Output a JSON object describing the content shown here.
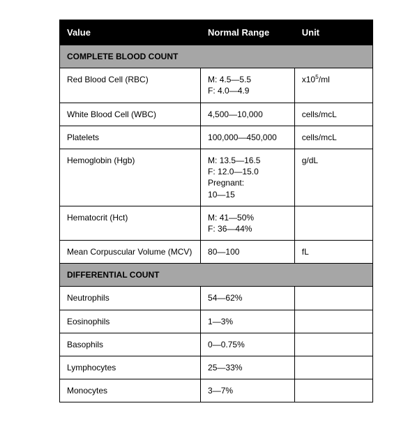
{
  "table": {
    "columns": [
      {
        "label": "Value",
        "width_pct": 45
      },
      {
        "label": "Normal Range",
        "width_pct": 30
      },
      {
        "label": "Unit",
        "width_pct": 25
      }
    ],
    "header_bg": "#000000",
    "header_fg": "#ffffff",
    "section_bg": "#a6a6a6",
    "border_color": "#000000",
    "cell_bg": "#ffffff",
    "font_size_header": 13,
    "font_size_cell": 12,
    "rows": [
      {
        "type": "section",
        "label": "COMPLETE BLOOD COUNT"
      },
      {
        "type": "data",
        "value": "Red Blood Cell (RBC)",
        "range": "M: 4.5—5.5\nF: 4.0—4.9",
        "unit_html": "x10<sup>5</sup>/ml",
        "unit_text": "x10^5/ml"
      },
      {
        "type": "data",
        "value": "White Blood Cell (WBC)",
        "range": "4,500—10,000",
        "unit": "cells/mcL"
      },
      {
        "type": "data",
        "value": "Platelets",
        "range": "100,000—450,000",
        "unit": "cells/mcL"
      },
      {
        "type": "data",
        "value": "Hemoglobin (Hgb)",
        "range": "M: 13.5—16.5\nF: 12.0—15.0\nPregnant:\n10—15",
        "unit": "g/dL"
      },
      {
        "type": "data",
        "value": "Hematocrit (Hct)",
        "range": "M: 41—50%\nF: 36—44%",
        "unit": ""
      },
      {
        "type": "data",
        "value": "Mean Corpuscular Volume (MCV)",
        "range": "80—100",
        "unit": "fL"
      },
      {
        "type": "section",
        "label": "DIFFERENTIAL COUNT"
      },
      {
        "type": "data",
        "value": "Neutrophils",
        "range": "54—62%",
        "unit": ""
      },
      {
        "type": "data",
        "value": "Eosinophils",
        "range": "1—3%",
        "unit": ""
      },
      {
        "type": "data",
        "value": "Basophils",
        "range": "0—0.75%",
        "unit": ""
      },
      {
        "type": "data",
        "value": "Lymphocytes",
        "range": "25—33%",
        "unit": ""
      },
      {
        "type": "data",
        "value": "Monocytes",
        "range": "3—7%",
        "unit": ""
      }
    ]
  }
}
